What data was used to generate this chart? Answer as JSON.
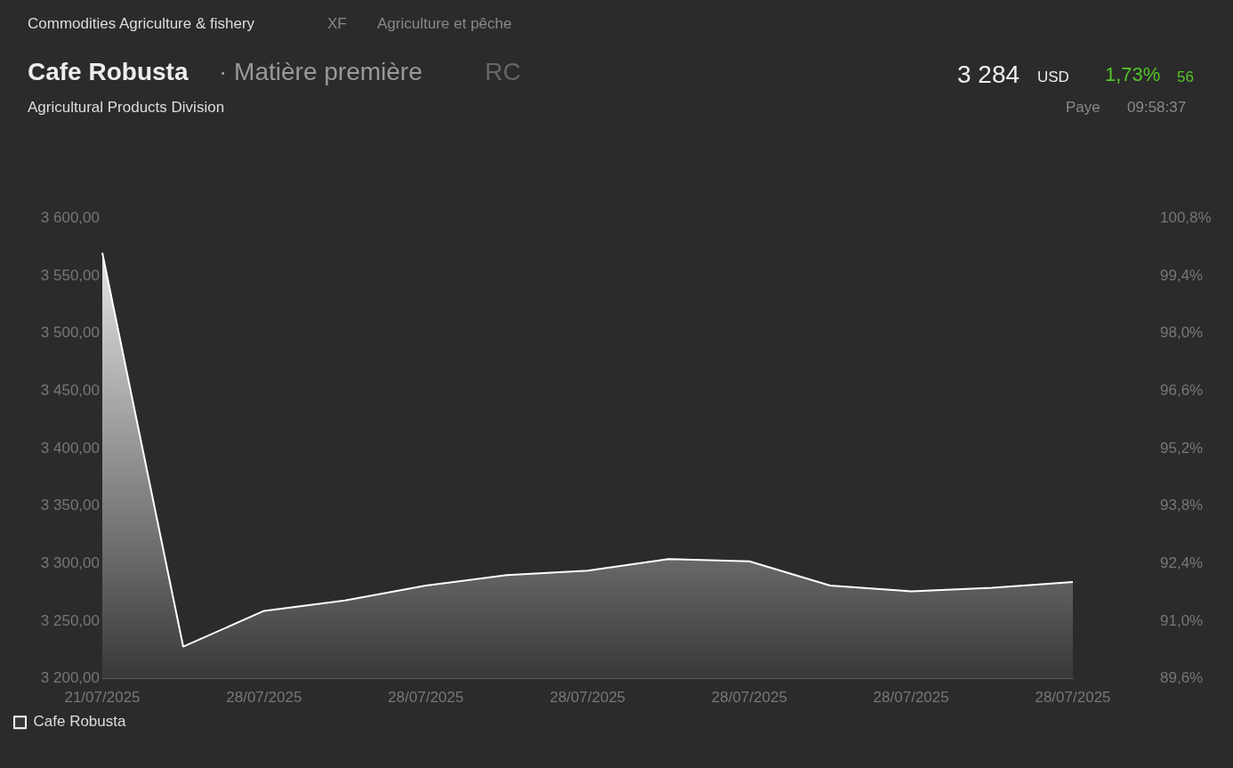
{
  "chart_data": {
    "type": "area",
    "title": "Cafe Robusta",
    "subtitle": "Agricultural Products Division",
    "annotations": [
      "Commodities Agriculture & fishery",
      "XF",
      "Agriculture et pêche",
      "· Matière première",
      "RC",
      "3 284",
      "USD",
      "1,73%",
      "56",
      "Paye",
      "09:58:37"
    ],
    "categories": [
      "21/07/2025",
      null,
      "28/07/2025",
      null,
      "28/07/2025",
      null,
      "28/07/2025",
      null,
      "28/07/2025",
      null,
      "28/07/2025",
      null,
      "28/07/2025"
    ],
    "series": [
      {
        "name": "Cafe Robusta",
        "color": "#ffffff",
        "values": [
          3570,
          3228,
          3259,
          3268,
          3281,
          3290,
          3294,
          3304,
          3302,
          3281,
          3276,
          3279,
          3284
        ]
      }
    ],
    "ylim": [
      3200,
      3600
    ],
    "yticks": [
      {
        "value": 3200,
        "label": "3 200,00"
      },
      {
        "value": 3250,
        "label": "3 250,00"
      },
      {
        "value": 3300,
        "label": "3 300,00"
      },
      {
        "value": 3350,
        "label": "3 350,00"
      },
      {
        "value": 3400,
        "label": "3 400,00"
      },
      {
        "value": 3450,
        "label": "3 450,00"
      },
      {
        "value": 3500,
        "label": "3 500,00"
      },
      {
        "value": 3550,
        "label": "3 550,00"
      },
      {
        "value": 3600,
        "label": "3 600,00"
      }
    ],
    "y2lim": [
      89.6,
      100.8
    ],
    "y2ticks": [
      {
        "value": 89.6,
        "label": "89,6%"
      },
      {
        "value": 91.0,
        "label": "91,0%"
      },
      {
        "value": 92.4,
        "label": "92,4%"
      },
      {
        "value": 93.8,
        "label": "93,8%"
      },
      {
        "value": 95.2,
        "label": "95,2%"
      },
      {
        "value": 96.6,
        "label": "96,6%"
      },
      {
        "value": 98.0,
        "label": "98,0%"
      },
      {
        "value": 99.4,
        "label": "99,4%"
      },
      {
        "value": 100.8,
        "label": "100,8%"
      }
    ],
    "grid": false,
    "legend": "bottom left",
    "marker": "none",
    "line_style": "solid"
  }
}
